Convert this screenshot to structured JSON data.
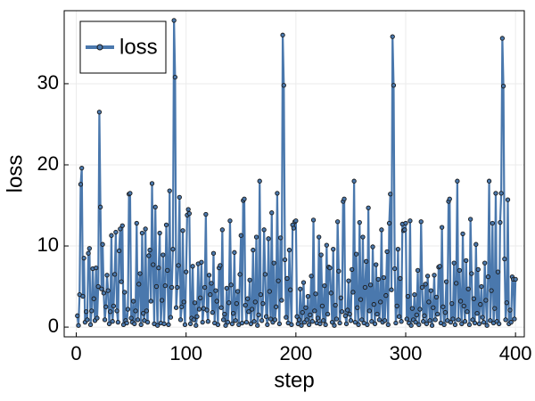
{
  "chart_data": {
    "type": "line",
    "xlabel": "step",
    "ylabel": "loss",
    "xlim": [
      -11,
      408
    ],
    "ylim": [
      -1.2,
      39
    ],
    "xticks": [
      0,
      100,
      200,
      300,
      400
    ],
    "yticks": [
      0,
      10,
      20,
      30
    ],
    "grid": true,
    "legend": "upper left",
    "x": [
      1,
      2,
      3,
      4,
      5,
      6,
      7,
      8,
      9,
      10,
      11,
      12,
      13,
      14,
      15,
      16,
      17,
      18,
      19,
      20,
      21,
      22,
      23,
      24,
      25,
      26,
      27,
      28,
      29,
      30,
      31,
      32,
      33,
      34,
      35,
      36,
      37,
      38,
      39,
      40,
      41,
      42,
      43,
      44,
      45,
      46,
      47,
      48,
      49,
      50,
      51,
      52,
      53,
      54,
      55,
      56,
      57,
      58,
      59,
      60,
      61,
      62,
      63,
      64,
      65,
      66,
      67,
      68,
      69,
      70,
      71,
      72,
      73,
      74,
      75,
      76,
      77,
      78,
      79,
      80,
      81,
      82,
      83,
      84,
      85,
      86,
      87,
      88,
      89,
      90,
      91,
      92,
      93,
      94,
      95,
      96,
      97,
      98,
      99,
      100,
      101,
      102,
      103,
      104,
      105,
      106,
      107,
      108,
      109,
      110,
      111,
      112,
      113,
      114,
      115,
      116,
      117,
      118,
      119,
      120,
      121,
      122,
      123,
      124,
      125,
      126,
      127,
      128,
      129,
      130,
      131,
      132,
      133,
      134,
      135,
      136,
      137,
      138,
      139,
      140,
      141,
      142,
      143,
      144,
      145,
      146,
      147,
      148,
      149,
      150,
      151,
      152,
      153,
      154,
      155,
      156,
      157,
      158,
      159,
      160,
      161,
      162,
      163,
      164,
      165,
      166,
      167,
      168,
      169,
      170,
      171,
      172,
      173,
      174,
      175,
      176,
      177,
      178,
      179,
      180,
      181,
      182,
      183,
      184,
      185,
      186,
      187,
      188,
      189,
      190,
      191,
      192,
      193,
      194,
      195,
      196,
      197,
      198,
      199,
      200,
      201,
      202,
      203,
      204,
      205,
      206,
      207,
      208,
      209,
      210,
      211,
      212,
      213,
      214,
      215,
      216,
      217,
      218,
      219,
      220,
      221,
      222,
      223,
      224,
      225,
      226,
      227,
      228,
      229,
      230,
      231,
      232,
      233,
      234,
      235,
      236,
      237,
      238,
      239,
      240,
      241,
      242,
      243,
      244,
      245,
      246,
      247,
      248,
      249,
      250,
      251,
      252,
      253,
      254,
      255,
      256,
      257,
      258,
      259,
      260,
      261,
      262,
      263,
      264,
      265,
      266,
      267,
      268,
      269,
      270,
      271,
      272,
      273,
      274,
      275,
      276,
      277,
      278,
      279,
      280,
      281,
      282,
      283,
      284,
      285,
      286,
      287,
      288,
      289,
      290,
      291,
      292,
      293,
      294,
      295,
      296,
      297,
      298,
      299,
      300,
      301,
      302,
      303,
      304,
      305,
      306,
      307,
      308,
      309,
      310,
      311,
      312,
      313,
      314,
      315,
      316,
      317,
      318,
      319,
      320,
      321,
      322,
      323,
      324,
      325,
      326,
      327,
      328,
      329,
      330,
      331,
      332,
      333,
      334,
      335,
      336,
      337,
      338,
      339,
      340,
      341,
      342,
      343,
      344,
      345,
      346,
      347,
      348,
      349,
      350,
      351,
      352,
      353,
      354,
      355,
      356,
      357,
      358,
      359,
      360,
      361,
      362,
      363,
      364,
      365,
      366,
      367,
      368,
      369,
      370,
      371,
      372,
      373,
      374,
      375,
      376,
      377,
      378,
      379,
      380,
      381,
      382,
      383,
      384,
      385,
      386,
      387,
      388,
      389,
      390,
      391,
      392,
      393,
      394,
      395,
      396,
      397,
      398,
      399,
      400
    ],
    "series": [
      {
        "name": "loss",
        "color": "#4a78ad",
        "values": [
          1.4,
          0.2,
          4.0,
          17.6,
          19.6,
          3.8,
          8.5,
          0.6,
          1.9,
          0.9,
          9.1,
          9.7,
          0.3,
          2.0,
          7.2,
          3.5,
          0.8,
          7.3,
          1.1,
          5.0,
          26.5,
          14.8,
          4.7,
          10.2,
          4.2,
          0.9,
          2.5,
          6.4,
          4.5,
          0.4,
          1.9,
          11.3,
          0.7,
          2.6,
          6.5,
          11.7,
          2.0,
          0.6,
          9.4,
          12.1,
          5.6,
          12.5,
          0.3,
          4.3,
          0.8,
          0.5,
          2.2,
          16.4,
          16.5,
          1.1,
          0.6,
          3.2,
          0.4,
          2.0,
          12.8,
          0.9,
          5.3,
          6.6,
          0.3,
          11.6,
          1.7,
          0.8,
          12.1,
          2.0,
          0.6,
          8.8,
          9.5,
          3.2,
          17.7,
          7.7,
          0.4,
          14.8,
          5.0,
          0.2,
          7.3,
          11.6,
          0.5,
          3.3,
          8.9,
          0.4,
          5.1,
          12.6,
          7.0,
          0.3,
          16.8,
          1.2,
          4.9,
          9.6,
          37.8,
          30.8,
          2.4,
          4.9,
          7.6,
          16.0,
          0.9,
          2.5,
          11.9,
          3.1,
          0.3,
          6.8,
          13.8,
          14.5,
          14.0,
          0.4,
          1.1,
          7.5,
          0.9,
          3.0,
          0.2,
          1.3,
          7.8,
          2.2,
          3.6,
          8.0,
          0.6,
          2.3,
          4.9,
          13.9,
          2.1,
          0.7,
          6.4,
          4.0,
          5.4,
          1.8,
          9.1,
          0.5,
          4.5,
          3.2,
          0.3,
          7.3,
          7.6,
          2.4,
          12.0,
          0.9,
          1.6,
          0.2,
          4.8,
          0.6,
          3.0,
          13.1,
          5.2,
          0.4,
          1.7,
          9.2,
          0.8,
          2.9,
          4.4,
          0.3,
          6.5,
          11.3,
          0.5,
          15.6,
          15.8,
          2.7,
          0.6,
          3.5,
          1.9,
          5.8,
          0.4,
          2.2,
          9.5,
          0.7,
          3.1,
          11.1,
          0.2,
          1.5,
          18.0,
          4.0,
          0.8,
          2.9,
          12.0,
          6.5,
          1.3,
          0.3,
          10.9,
          4.4,
          1.0,
          14.1,
          0.6,
          7.9,
          0.9,
          2.5,
          16.5,
          5.7,
          0.4,
          11.0,
          3.3,
          36.0,
          29.8,
          8.3,
          1.2,
          6.0,
          0.5,
          9.5,
          4.6,
          0.3,
          12.6,
          12.2,
          13.0,
          13.1,
          1.3,
          0.4,
          0.9,
          4.7,
          0.2,
          1.8,
          5.5,
          0.6,
          2.4,
          0.9,
          3.8,
          0.3,
          1.5,
          6.3,
          0.7,
          13.2,
          2.0,
          4.1,
          0.5,
          1.1,
          11.1,
          0.4,
          8.9,
          2.6,
          0.8,
          5.1,
          0.3,
          10.1,
          1.6,
          7.4,
          7.3,
          4.2,
          0.6,
          9.6,
          0.2,
          2.7,
          1.0,
          13.0,
          6.9,
          0.5,
          3.6,
          1.9,
          15.5,
          15.8,
          1.4,
          0.4,
          2.1,
          5.7,
          1.6,
          0.8,
          7.1,
          4.3,
          18.0,
          0.6,
          9.0,
          2.4,
          0.3,
          12.9,
          3.4,
          0.9,
          11.1,
          0.5,
          4.9,
          8.1,
          0.3,
          14.7,
          2.0,
          5.2,
          0.7,
          9.9,
          2.8,
          0.4,
          7.7,
          1.6,
          5.9,
          0.9,
          3.1,
          12.0,
          0.6,
          6.1,
          0.8,
          3.9,
          9.3,
          0.3,
          12.8,
          16.4,
          4.6,
          35.8,
          29.8,
          7.2,
          0.5,
          2.6,
          9.6,
          1.3,
          6.0,
          0.7,
          12.7,
          11.9,
          12.0,
          12.8,
          1.0,
          3.8,
          0.5,
          13.1,
          0.2,
          2.3,
          0.9,
          4.0,
          0.6,
          1.5,
          7.0,
          0.3,
          2.2,
          13.0,
          4.9,
          0.7,
          1.4,
          5.3,
          0.4,
          6.3,
          3.1,
          0.8,
          4.5,
          0.2,
          2.4,
          6.4,
          0.9,
          3.7,
          1.6,
          7.4,
          7.5,
          0.5,
          12.3,
          2.5,
          0.3,
          1.8,
          5.6,
          0.8,
          15.5,
          15.8,
          0.6,
          2.9,
          1.0,
          7.9,
          0.3,
          5.4,
          18.0,
          0.9,
          7.0,
          3.2,
          0.4,
          11.5,
          2.6,
          0.7,
          8.2,
          1.9,
          4.7,
          0.3,
          13.3,
          6.6,
          0.9,
          3.5,
          0.5,
          10.2,
          1.7,
          7.1,
          0.4,
          2.8,
          5.0,
          1.2,
          0.6,
          7.9,
          3.3,
          0.2,
          6.2,
          18.0,
          0.8,
          4.5,
          12.8,
          0.5,
          2.3,
          16.5,
          0.7,
          6.8,
          0.4,
          12.9,
          16.5,
          35.6,
          29.7,
          8.4,
          0.9,
          3.0,
          15.7,
          0.4,
          2.1,
          0.6,
          6.2,
          5.9,
          1.0,
          5.9
        ]
      }
    ]
  }
}
